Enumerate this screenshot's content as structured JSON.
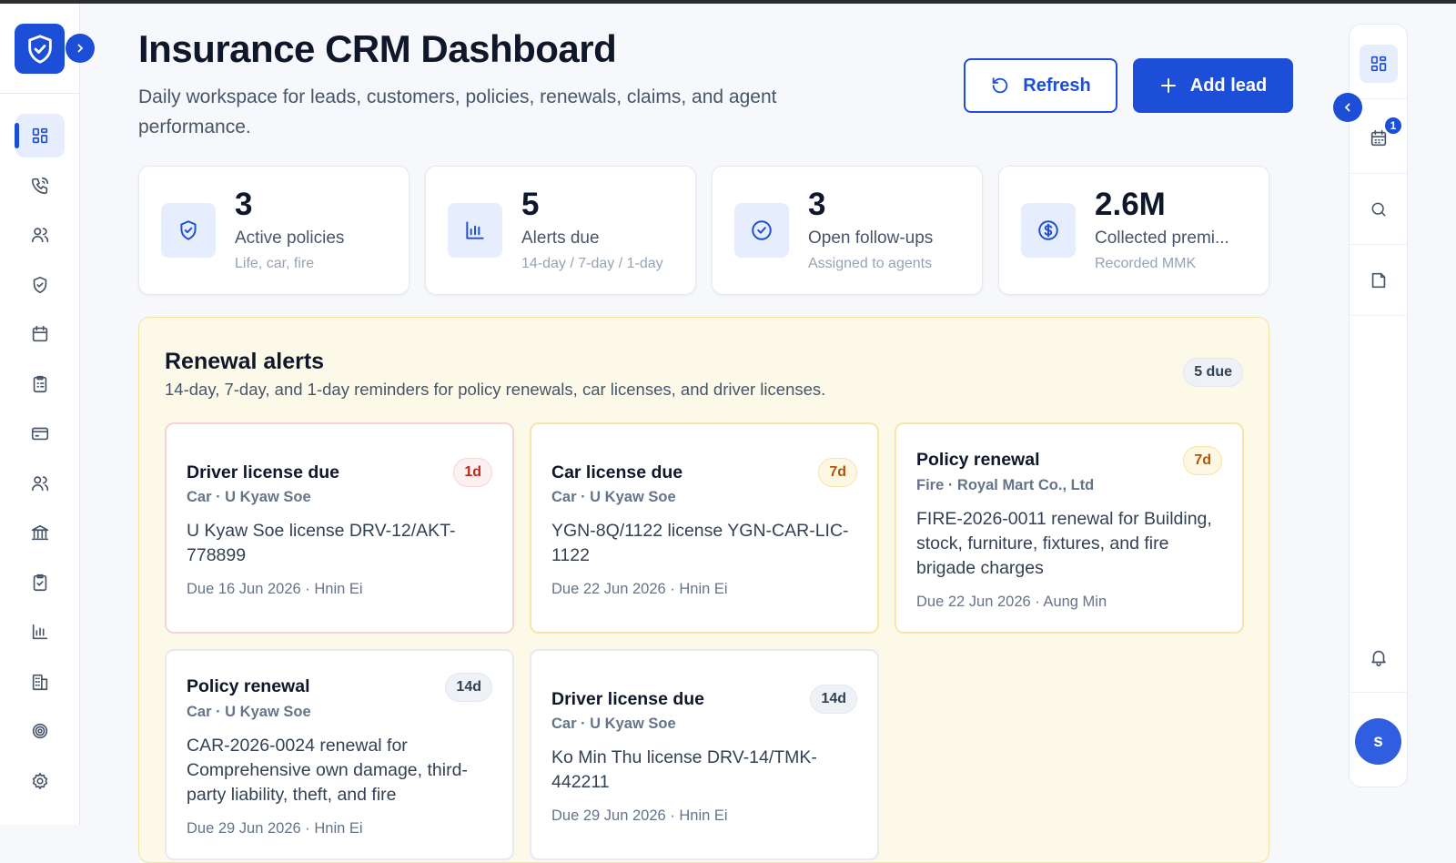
{
  "header": {
    "title": "Insurance CRM Dashboard",
    "subtitle": "Daily workspace for leads, customers, policies, renewals, claims, and agent performance.",
    "buttons": {
      "refresh": "Refresh",
      "add_lead": "Add lead"
    }
  },
  "stats": [
    {
      "value": "3",
      "label": "Active policies",
      "sub": "Life, car, fire"
    },
    {
      "value": "5",
      "label": "Alerts due",
      "sub": "14-day / 7-day / 1-day"
    },
    {
      "value": "3",
      "label": "Open follow-ups",
      "sub": "Assigned to agents"
    },
    {
      "value": "2.6M",
      "label": "Collected premi...",
      "sub": "Recorded MMK"
    }
  ],
  "renewals": {
    "title": "Renewal alerts",
    "subtitle": "14-day, 7-day, and 1-day reminders for policy renewals, car licenses, and driver licenses.",
    "badge": "5 due",
    "alerts": [
      {
        "title": "Driver license due",
        "badge": "1d",
        "meta": "Car · U Kyaw Soe",
        "description": "U Kyaw Soe license DRV-12/AKT-778899",
        "due": "Due 16 Jun 2026 · Hnin Ei"
      },
      {
        "title": "Car license due",
        "badge": "7d",
        "meta": "Car · U Kyaw Soe",
        "description": "YGN-8Q/1122 license YGN-CAR-LIC-1122",
        "due": "Due 22 Jun 2026 · Hnin Ei"
      },
      {
        "title": "Policy renewal",
        "badge": "7d",
        "meta": "Fire · Royal Mart Co., Ltd",
        "description": "FIRE-2026-0011 renewal for Building, stock, furniture, fixtures, and fire brigade charges",
        "due": "Due 22 Jun 2026 · Aung Min"
      },
      {
        "title": "Policy renewal",
        "badge": "14d",
        "meta": "Car · U Kyaw Soe",
        "description": "CAR-2026-0024 renewal for Comprehensive own damage, third-party liability, theft, and fire",
        "due": "Due 29 Jun 2026 · Hnin Ei"
      },
      {
        "title": "Driver license due",
        "badge": "14d",
        "meta": "Car · U Kyaw Soe",
        "description": "Ko Min Thu license DRV-14/TMK-442211",
        "due": "Due 29 Jun 2026 · Hnin Ei"
      }
    ]
  },
  "right_rail": {
    "calendar_badge": "1",
    "avatar": "s"
  }
}
